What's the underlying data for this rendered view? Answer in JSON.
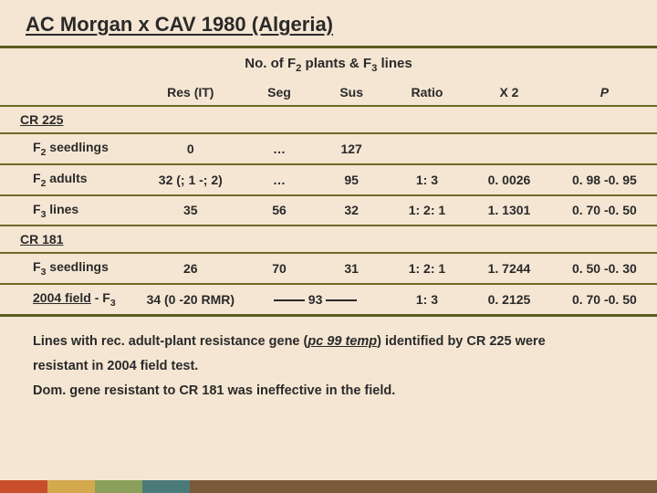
{
  "title": "AC Morgan x CAV 1980 (Algeria)",
  "supertitle_prefix": "No. of F",
  "supertitle_mid": " plants &  F",
  "supertitle_suffix": " lines",
  "headers": {
    "res": "Res (IT)",
    "seg": "Seg",
    "sus": "Sus",
    "ratio": "Ratio",
    "x2": "X 2",
    "p": "P"
  },
  "sections": {
    "cr225": "CR 225",
    "cr181": "CR 181"
  },
  "rows": {
    "f2seed": {
      "label_a": "F",
      "label_b": " seedlings",
      "res": "0",
      "seg": "…",
      "sus": "127",
      "ratio": "",
      "x2": "",
      "p": ""
    },
    "f2ad": {
      "label_a": "F",
      "label_b": " adults",
      "res": "32 (; 1 -; 2)",
      "seg": "…",
      "sus": "95",
      "ratio": "1: 3",
      "x2": "0. 0026",
      "p": "0. 98 -0. 95"
    },
    "f3lines": {
      "label_a": "F",
      "label_b": " lines",
      "res": "35",
      "seg": "56",
      "sus": "32",
      "ratio": "1: 2: 1",
      "x2": "1. 1301",
      "p": "0. 70 -0. 50"
    },
    "f3seed": {
      "label_a": "F",
      "label_b": " seedlings",
      "res": "26",
      "seg": "70",
      "sus": "31",
      "ratio": "1: 2: 1",
      "x2": "1. 7244",
      "p": "0. 50 -0. 30"
    },
    "field": {
      "label_a": "2004 field",
      "label_b": " - F",
      "res": "34 (0 -20 RMR)",
      "seg": "",
      "sus_mid": "93",
      "ratio": "1: 3",
      "x2": "0. 2125",
      "p": "0. 70 -0. 50"
    }
  },
  "caption": {
    "l1a": "Lines with rec. adult-plant resistance gene (",
    "l1b": "pc 99 temp",
    "l1c": ") identified by CR 225 were",
    "l2": "resistant in 2004 field test.",
    "l3": "Dom. gene resistant to CR 181 was ineffective in the field."
  }
}
